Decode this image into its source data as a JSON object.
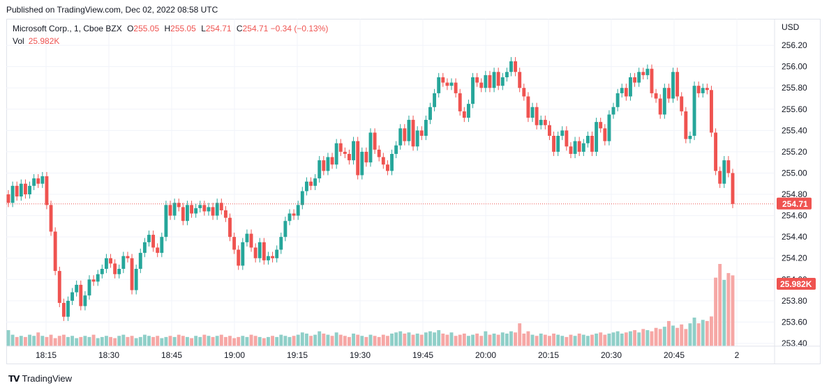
{
  "header": {
    "published": "Published on TradingView.com, Dec 02, 2022 08:58 UTC"
  },
  "legend": {
    "symbol": "Microsoft Corp., 1, Cboe BZX",
    "open_label": "O",
    "open": "255.05",
    "high_label": "H",
    "high": "255.05",
    "low_label": "L",
    "low": "254.71",
    "close": "254.71",
    "change": "−0.34 (−0.13%)",
    "volume_label": "Vol",
    "volume": "25.982K"
  },
  "footer": {
    "brand": "TradingView"
  },
  "colors": {
    "up": "#26a69a",
    "down": "#ef5350",
    "up_volume": "#8fcfc8",
    "down_volume": "#f6a7a5",
    "grid": "#f0f3fa",
    "text": "#131722"
  },
  "chart_data": {
    "type": "candlestick",
    "currency": "USD",
    "y_ticks": [
      "253.40",
      "253.60",
      "253.80",
      "254.00",
      "254.20",
      "254.40",
      "254.60",
      "254.80",
      "255.00",
      "255.20",
      "255.40",
      "255.60",
      "255.80",
      "256.00",
      "256.20"
    ],
    "y_range": [
      253.4,
      256.24
    ],
    "x_ticks": [
      "18:15",
      "18:30",
      "18:45",
      "19:00",
      "19:15",
      "19:30",
      "19:45",
      "20:00",
      "20:15",
      "20:30",
      "20:45",
      "2"
    ],
    "last_price": "254.71",
    "last_volume": "25.982K",
    "closes": [
      254.72,
      254.88,
      254.78,
      254.9,
      254.8,
      254.88,
      254.95,
      254.9,
      254.97,
      254.7,
      254.45,
      254.08,
      253.78,
      253.65,
      253.8,
      253.88,
      253.95,
      253.75,
      253.85,
      254.0,
      253.98,
      254.05,
      254.1,
      254.2,
      254.15,
      254.05,
      254.1,
      254.22,
      254.2,
      253.9,
      254.1,
      254.25,
      254.35,
      254.42,
      254.3,
      254.25,
      254.4,
      254.7,
      254.6,
      254.72,
      254.68,
      254.55,
      254.7,
      254.62,
      254.67,
      254.7,
      254.64,
      254.68,
      254.6,
      254.72,
      254.65,
      254.58,
      254.4,
      254.28,
      254.13,
      254.35,
      254.43,
      254.3,
      254.2,
      254.35,
      254.18,
      254.22,
      254.2,
      254.28,
      254.4,
      254.55,
      254.62,
      254.6,
      254.7,
      254.83,
      254.92,
      254.88,
      254.95,
      255.12,
      255.02,
      255.15,
      255.08,
      255.28,
      255.2,
      255.18,
      255.12,
      255.3,
      254.98,
      255.2,
      255.1,
      255.38,
      255.22,
      255.15,
      255.08,
      255.02,
      255.18,
      255.26,
      255.42,
      255.3,
      255.5,
      255.25,
      255.4,
      255.35,
      255.5,
      255.62,
      255.75,
      255.9,
      255.85,
      255.82,
      255.85,
      255.75,
      255.58,
      255.52,
      255.65,
      255.9,
      255.85,
      255.8,
      255.92,
      255.8,
      255.95,
      255.82,
      255.9,
      255.95,
      256.05,
      255.95,
      255.8,
      255.72,
      255.52,
      255.62,
      255.45,
      255.5,
      255.45,
      255.35,
      255.2,
      255.35,
      255.4,
      255.25,
      255.18,
      255.3,
      255.2,
      255.28,
      255.35,
      255.2,
      255.48,
      255.42,
      255.3,
      255.55,
      255.62,
      255.75,
      255.8,
      255.72,
      255.9,
      255.85,
      255.95,
      255.92,
      255.98,
      255.75,
      255.7,
      255.55,
      255.8,
      255.7,
      255.95,
      255.72,
      255.58,
      255.32,
      255.35,
      255.82,
      255.75,
      255.8,
      255.78,
      255.38,
      255.02,
      254.9,
      255.12,
      255.0,
      254.71
    ],
    "volumes": [
      14,
      10,
      8,
      9,
      8,
      10,
      9,
      12,
      9,
      8,
      10,
      7,
      9,
      10,
      8,
      9,
      7,
      8,
      9,
      8,
      10,
      7,
      8,
      9,
      8,
      7,
      9,
      10,
      8,
      9,
      7,
      8,
      10,
      9,
      8,
      9,
      7,
      8,
      9,
      8,
      10,
      9,
      8,
      7,
      9,
      8,
      10,
      9,
      8,
      9,
      10,
      8,
      9,
      7,
      8,
      9,
      8,
      10,
      9,
      8,
      7,
      8,
      9,
      8,
      10,
      9,
      8,
      9,
      10,
      12,
      11,
      9,
      10,
      13,
      11,
      10,
      9,
      12,
      10,
      9,
      8,
      11,
      10,
      9,
      8,
      10,
      9,
      8,
      10,
      9,
      11,
      12,
      13,
      11,
      12,
      10,
      11,
      10,
      12,
      13,
      12,
      14,
      11,
      10,
      12,
      9,
      10,
      11,
      9,
      10,
      11,
      9,
      13,
      10,
      11,
      10,
      12,
      11,
      13,
      12,
      20,
      11,
      13,
      10,
      9,
      11,
      10,
      9,
      11,
      10,
      9,
      8,
      10,
      9,
      11,
      10,
      9,
      10,
      11,
      12,
      10,
      11,
      12,
      13,
      11,
      12,
      13,
      14,
      12,
      15,
      14,
      13,
      16,
      15,
      17,
      22,
      18,
      16,
      19,
      15,
      20,
      25,
      20,
      23,
      22,
      26,
      60,
      72,
      58,
      64,
      62
    ]
  }
}
